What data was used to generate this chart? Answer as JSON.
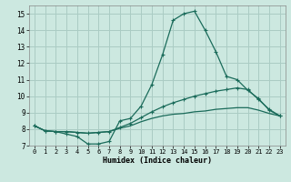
{
  "xlabel": "Humidex (Indice chaleur)",
  "background_color": "#cce8e0",
  "line_color": "#1a6b5a",
  "grid_color": "#aaccc4",
  "xlim": [
    -0.5,
    23.5
  ],
  "ylim": [
    7,
    15.5
  ],
  "xticks": [
    0,
    1,
    2,
    3,
    4,
    5,
    6,
    7,
    8,
    9,
    10,
    11,
    12,
    13,
    14,
    15,
    16,
    17,
    18,
    19,
    20,
    21,
    22,
    23
  ],
  "yticks": [
    7,
    8,
    9,
    10,
    11,
    12,
    13,
    14,
    15
  ],
  "line1_x": [
    0,
    1,
    2,
    3,
    4,
    5,
    6,
    7,
    8,
    9,
    10,
    11,
    12,
    13,
    14,
    15,
    16,
    17,
    18,
    19,
    20,
    21,
    22,
    23
  ],
  "line1_y": [
    8.2,
    7.9,
    7.85,
    7.7,
    7.55,
    7.1,
    7.1,
    7.25,
    8.5,
    8.65,
    9.4,
    10.7,
    12.5,
    14.6,
    15.0,
    15.15,
    14.0,
    12.7,
    11.2,
    11.0,
    10.35,
    9.85,
    9.15,
    8.8
  ],
  "line2_x": [
    0,
    1,
    2,
    3,
    4,
    5,
    6,
    7,
    8,
    9,
    10,
    11,
    12,
    13,
    14,
    15,
    16,
    17,
    18,
    19,
    20,
    21,
    22,
    23
  ],
  "line2_y": [
    8.2,
    7.9,
    7.85,
    7.85,
    7.8,
    7.75,
    7.8,
    7.85,
    8.1,
    8.35,
    8.7,
    9.05,
    9.35,
    9.6,
    9.8,
    10.0,
    10.15,
    10.3,
    10.4,
    10.5,
    10.4,
    9.8,
    9.2,
    8.8
  ],
  "line3_x": [
    0,
    1,
    2,
    3,
    4,
    5,
    6,
    7,
    8,
    9,
    10,
    11,
    12,
    13,
    14,
    15,
    16,
    17,
    18,
    19,
    20,
    21,
    22,
    23
  ],
  "line3_y": [
    8.2,
    7.9,
    7.85,
    7.85,
    7.8,
    7.75,
    7.8,
    7.85,
    8.05,
    8.2,
    8.45,
    8.65,
    8.8,
    8.9,
    8.95,
    9.05,
    9.1,
    9.2,
    9.25,
    9.3,
    9.3,
    9.15,
    8.95,
    8.8
  ]
}
